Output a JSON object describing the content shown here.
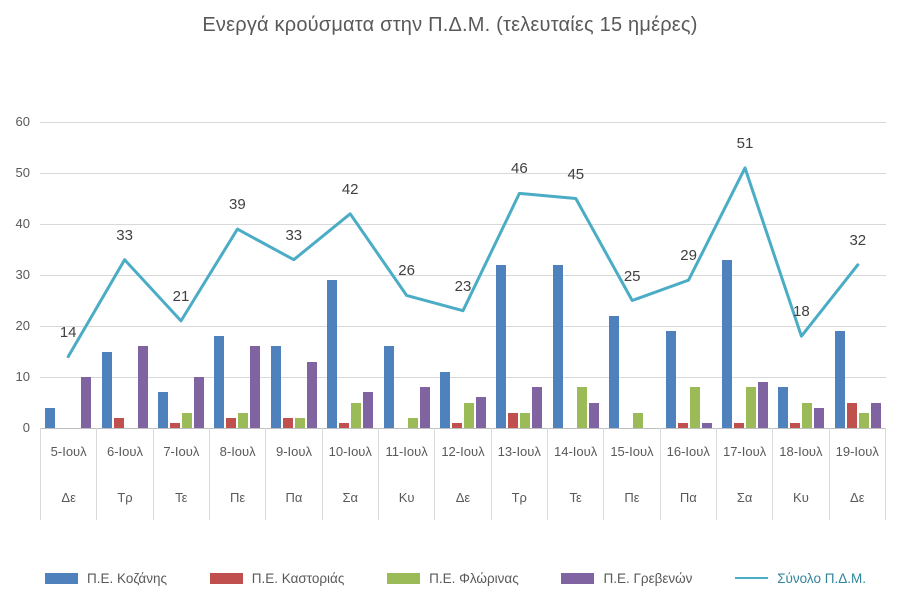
{
  "chart_data": {
    "type": "bar",
    "subtype": "grouped-bars-with-total-line-overlay",
    "title": "Ενεργά κρούσματα στην Π.Δ.Μ. (τελευταίες 15 ημέρες)",
    "categories": [
      "5-Ιουλ",
      "6-Ιουλ",
      "7-Ιουλ",
      "8-Ιουλ",
      "9-Ιουλ",
      "10-Ιουλ",
      "11-Ιουλ",
      "12-Ιουλ",
      "13-Ιουλ",
      "14-Ιουλ",
      "15-Ιουλ",
      "16-Ιουλ",
      "17-Ιουλ",
      "18-Ιουλ",
      "19-Ιουλ"
    ],
    "category_weekdays": [
      "Δε",
      "Τρ",
      "Τε",
      "Πε",
      "Πα",
      "Σα",
      "Κυ",
      "Δε",
      "Τρ",
      "Τε",
      "Πε",
      "Πα",
      "Σα",
      "Κυ",
      "Δε"
    ],
    "series": [
      {
        "name": "Π.Ε. Κοζάνης",
        "render": "bar",
        "color": "#4F81BD",
        "values": [
          4,
          15,
          7,
          18,
          16,
          29,
          16,
          11,
          32,
          32,
          22,
          19,
          33,
          8,
          19
        ]
      },
      {
        "name": "Π.Ε. Καστοριάς",
        "render": "bar",
        "color": "#C0504D",
        "values": [
          0,
          2,
          1,
          2,
          2,
          1,
          0,
          1,
          3,
          0,
          0,
          1,
          1,
          1,
          5
        ]
      },
      {
        "name": "Π.Ε. Φλώρινας",
        "render": "bar",
        "color": "#9BBB59",
        "values": [
          0,
          0,
          3,
          3,
          2,
          5,
          2,
          5,
          3,
          8,
          3,
          8,
          8,
          5,
          3
        ]
      },
      {
        "name": "Π.Ε. Γρεβενών",
        "render": "bar",
        "color": "#8064A2",
        "values": [
          10,
          16,
          10,
          16,
          13,
          7,
          8,
          6,
          8,
          5,
          0,
          1,
          9,
          4,
          5
        ]
      },
      {
        "name": "Σύνολο Π.Δ.Μ.",
        "render": "line",
        "color": "#4BACC6",
        "legend_label_color": "#31849B",
        "data_labels": true,
        "values": [
          14,
          33,
          21,
          39,
          33,
          42,
          26,
          23,
          46,
          45,
          25,
          29,
          51,
          18,
          32
        ]
      }
    ],
    "ylim": [
      0,
      60
    ],
    "yticks": [
      0,
      10,
      20,
      30,
      40,
      50,
      60
    ],
    "grid": true,
    "legend_position": "bottom"
  }
}
